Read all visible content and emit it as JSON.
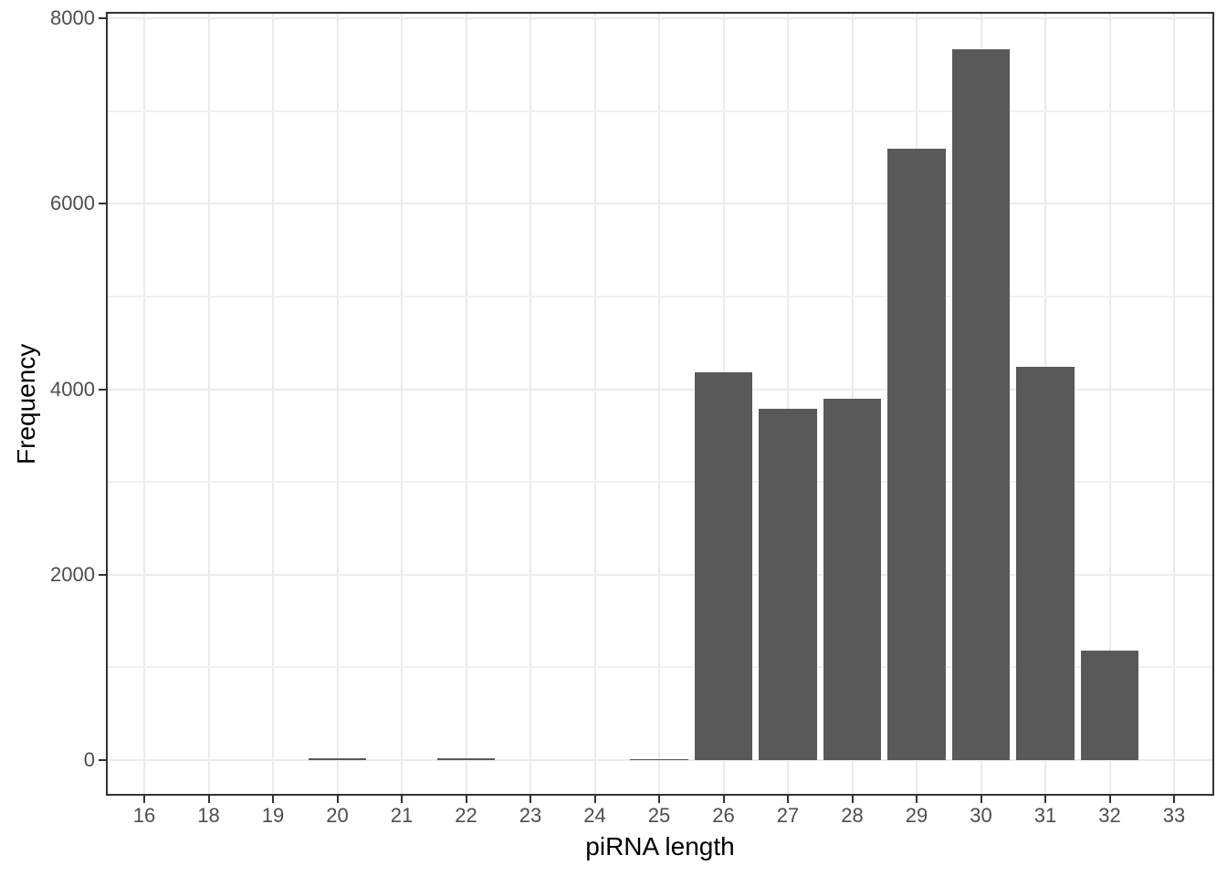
{
  "chart_data": {
    "type": "bar",
    "title": "",
    "xlabel": "piRNA length",
    "ylabel": "Frequency",
    "categories": [
      "16",
      "18",
      "19",
      "20",
      "21",
      "22",
      "23",
      "24",
      "25",
      "26",
      "27",
      "28",
      "29",
      "30",
      "31",
      "32",
      "33"
    ],
    "values": [
      0,
      0,
      0,
      20,
      0,
      18,
      0,
      0,
      14,
      4180,
      3790,
      3900,
      6590,
      7670,
      4240,
      1180,
      0
    ],
    "ylim": [
      0,
      8000
    ],
    "y_major_ticks": [
      0,
      2000,
      4000,
      6000,
      8000
    ],
    "y_major_tick_labels": [
      "0",
      "2000",
      "4000",
      "6000",
      "8000"
    ],
    "y_minor_gridlines": [
      1000,
      3000,
      5000,
      7000
    ],
    "grid": true,
    "legend": false,
    "colors": {
      "bar_fill": "#595959",
      "panel_border": "#333333",
      "major_gridline": "#ebebeb",
      "minor_gridline": "#f1f1f1",
      "tick_mark": "#333333",
      "tick_label_text": "#4d4d4d",
      "axis_title_text": "#000000",
      "background": "#ffffff"
    }
  }
}
